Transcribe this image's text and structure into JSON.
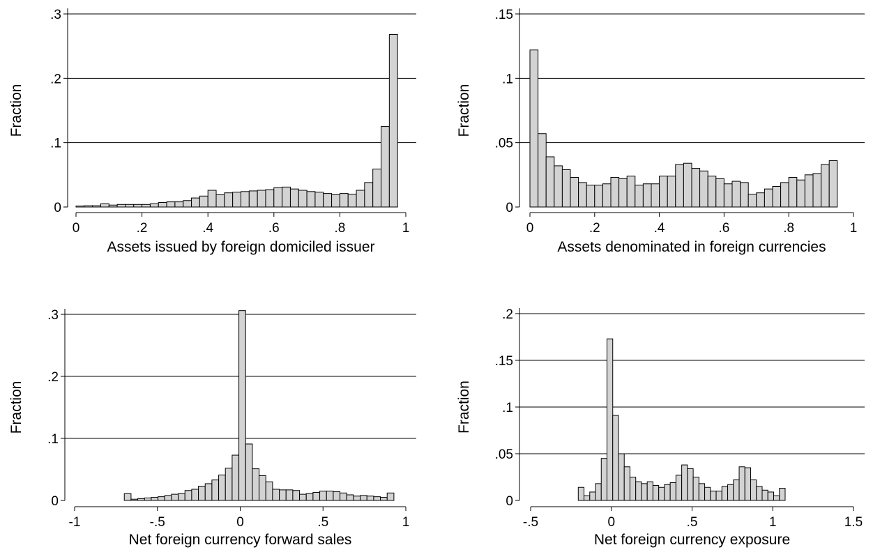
{
  "colors": {
    "bar_fill": "#d3d3d3",
    "bar_stroke": "#000000",
    "gridline": "#000000"
  },
  "chart_data": [
    {
      "type": "bar",
      "ylabel": "Fraction",
      "xlabel": "Assets issued by foreign domiciled issuer",
      "xlim": [
        0,
        1
      ],
      "ylim": [
        0,
        0.3
      ],
      "grid": true,
      "bin_width": 0.025,
      "bin_start": 0,
      "x_ticks": [
        0,
        0.2,
        0.4,
        0.6,
        0.8,
        1
      ],
      "x_tick_labels": [
        "0",
        ".2",
        ".4",
        ".6",
        ".8",
        "1"
      ],
      "y_ticks": [
        0,
        0.1,
        0.2,
        0.3
      ],
      "y_tick_labels": [
        "0",
        ".1",
        ".2",
        ".3"
      ],
      "values": [
        0.0015,
        0.002,
        0.002,
        0.005,
        0.003,
        0.004,
        0.004,
        0.004,
        0.004,
        0.005,
        0.007,
        0.008,
        0.008,
        0.01,
        0.014,
        0.017,
        0.026,
        0.019,
        0.022,
        0.023,
        0.024,
        0.025,
        0.026,
        0.027,
        0.03,
        0.031,
        0.028,
        0.026,
        0.024,
        0.023,
        0.021,
        0.019,
        0.021,
        0.02,
        0.026,
        0.038,
        0.059,
        0.125,
        0.268
      ]
    },
    {
      "type": "bar",
      "ylabel": "Fraction",
      "xlabel": "Assets denominated in foreign currencies",
      "xlim": [
        0,
        1
      ],
      "ylim": [
        0,
        0.15
      ],
      "grid": true,
      "bin_width": 0.025,
      "bin_start": 0,
      "x_ticks": [
        0,
        0.2,
        0.4,
        0.6,
        0.8,
        1
      ],
      "x_tick_labels": [
        "0",
        ".2",
        ".4",
        ".6",
        ".8",
        "1"
      ],
      "y_ticks": [
        0,
        0.05,
        0.1,
        0.15
      ],
      "y_tick_labels": [
        "0",
        ".05",
        ".1",
        ".15"
      ],
      "values": [
        0.122,
        0.057,
        0.039,
        0.032,
        0.029,
        0.023,
        0.019,
        0.017,
        0.017,
        0.018,
        0.023,
        0.022,
        0.024,
        0.017,
        0.018,
        0.018,
        0.024,
        0.024,
        0.033,
        0.034,
        0.03,
        0.028,
        0.024,
        0.022,
        0.018,
        0.02,
        0.019,
        0.01,
        0.011,
        0.014,
        0.016,
        0.019,
        0.023,
        0.021,
        0.025,
        0.026,
        0.033,
        0.036
      ]
    },
    {
      "type": "bar",
      "ylabel": "Fraction",
      "xlabel": "Net foreign currency forward sales",
      "xlim": [
        -1,
        1
      ],
      "ylim": [
        0,
        0.3
      ],
      "grid": true,
      "bin_width": 0.0407,
      "bin_start": -0.7,
      "x_ticks": [
        -1,
        -0.5,
        0,
        0.5,
        1
      ],
      "x_tick_labels": [
        "-1",
        "-.5",
        "0",
        ".5",
        "1"
      ],
      "y_ticks": [
        0,
        0.1,
        0.2,
        0.3
      ],
      "y_tick_labels": [
        "0",
        ".1",
        ".2",
        ".3"
      ],
      "values": [
        0.011,
        0.002,
        0.003,
        0.004,
        0.005,
        0.006,
        0.008,
        0.01,
        0.011,
        0.016,
        0.018,
        0.023,
        0.027,
        0.033,
        0.041,
        0.052,
        0.073,
        0.306,
        0.091,
        0.051,
        0.04,
        0.03,
        0.018,
        0.017,
        0.017,
        0.016,
        0.01,
        0.011,
        0.013,
        0.015,
        0.015,
        0.014,
        0.012,
        0.009,
        0.007,
        0.008,
        0.007,
        0.006,
        0.005,
        0.012
      ]
    },
    {
      "type": "bar",
      "ylabel": "Fraction",
      "xlabel": "Net foreign currency exposure",
      "xlim": [
        -0.5,
        1.5
      ],
      "ylim": [
        0,
        0.2
      ],
      "grid": true,
      "bin_width": 0.0356,
      "bin_start": -0.205,
      "x_ticks": [
        -0.5,
        0,
        0.5,
        1,
        1.5
      ],
      "x_tick_labels": [
        "-.5",
        "0",
        ".5",
        "1",
        "1.5"
      ],
      "y_ticks": [
        0,
        0.05,
        0.1,
        0.15,
        0.2
      ],
      "y_tick_labels": [
        "0",
        ".05",
        ".1",
        ".15",
        ".2"
      ],
      "values": [
        0.014,
        0.005,
        0.009,
        0.018,
        0.045,
        0.173,
        0.091,
        0.05,
        0.036,
        0.025,
        0.02,
        0.018,
        0.02,
        0.016,
        0.014,
        0.017,
        0.019,
        0.027,
        0.038,
        0.034,
        0.025,
        0.018,
        0.014,
        0.01,
        0.01,
        0.015,
        0.017,
        0.022,
        0.036,
        0.035,
        0.022,
        0.015,
        0.011,
        0.009,
        0.005,
        0.013
      ]
    }
  ]
}
